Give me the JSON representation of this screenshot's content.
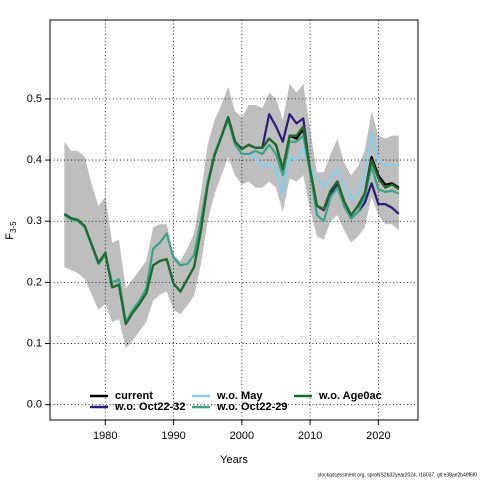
{
  "chart_data": {
    "type": "line",
    "xlabel": "Years",
    "ylabel": "F",
    "ylabel_subscript": "3-5",
    "footer": "stockassessment.org, spraNS2b32year2024, r18037, git:e38ae2b49f6f0",
    "x": [
      1974,
      1975,
      1976,
      1977,
      1978,
      1979,
      1980,
      1981,
      1982,
      1983,
      1984,
      1985,
      1986,
      1987,
      1988,
      1989,
      1990,
      1991,
      1992,
      1993,
      1994,
      1995,
      1996,
      1997,
      1998,
      1999,
      2000,
      2001,
      2002,
      2003,
      2004,
      2005,
      2006,
      2007,
      2008,
      2009,
      2010,
      2011,
      2012,
      2013,
      2014,
      2015,
      2016,
      2017,
      2018,
      2019,
      2020,
      2021,
      2022,
      2023
    ],
    "xlim": [
      1971.9,
      2025.8
    ],
    "xticks": [
      1980,
      1990,
      2000,
      2010,
      2020
    ],
    "ylim": [
      -0.025,
      0.629
    ],
    "yticks": [
      {
        "value": 0,
        "label": "0.0"
      },
      0.1,
      0.2,
      0.3,
      0.4,
      0.5
    ],
    "grid": true,
    "band": {
      "color": "#bebebe",
      "upper": [
        0.43,
        0.415,
        0.415,
        0.405,
        0.36,
        0.325,
        0.34,
        0.265,
        0.27,
        0.19,
        0.205,
        0.22,
        0.235,
        0.29,
        0.295,
        0.295,
        0.245,
        0.235,
        0.255,
        0.28,
        0.345,
        0.425,
        0.465,
        0.49,
        0.52,
        0.48,
        0.47,
        0.49,
        0.49,
        0.485,
        0.51,
        0.5,
        0.465,
        0.525,
        0.51,
        0.525,
        0.45,
        0.38,
        0.38,
        0.41,
        0.435,
        0.395,
        0.375,
        0.39,
        0.415,
        0.48,
        0.44,
        0.435,
        0.44,
        0.44
      ],
      "lower": [
        0.225,
        0.22,
        0.215,
        0.205,
        0.18,
        0.155,
        0.165,
        0.135,
        0.14,
        0.092,
        0.105,
        0.12,
        0.135,
        0.17,
        0.18,
        0.185,
        0.155,
        0.148,
        0.162,
        0.178,
        0.23,
        0.3,
        0.345,
        0.375,
        0.405,
        0.375,
        0.36,
        0.365,
        0.355,
        0.355,
        0.365,
        0.355,
        0.315,
        0.37,
        0.365,
        0.375,
        0.32,
        0.275,
        0.27,
        0.3,
        0.31,
        0.285,
        0.265,
        0.275,
        0.29,
        0.34,
        0.31,
        0.295,
        0.295,
        0.285
      ]
    },
    "series": [
      {
        "name": "current",
        "color": "#000000",
        "values": [
          0.312,
          0.305,
          0.302,
          0.292,
          0.262,
          0.232,
          0.248,
          0.192,
          0.196,
          0.132,
          0.15,
          0.165,
          0.182,
          0.228,
          0.235,
          0.238,
          0.198,
          0.185,
          0.205,
          0.225,
          0.285,
          0.36,
          0.408,
          0.438,
          0.47,
          0.43,
          0.418,
          0.425,
          0.42,
          0.42,
          0.435,
          0.425,
          0.385,
          0.44,
          0.435,
          0.45,
          0.385,
          0.325,
          0.32,
          0.35,
          0.365,
          0.332,
          0.31,
          0.325,
          0.345,
          0.405,
          0.375,
          0.36,
          0.362,
          0.355
        ]
      },
      {
        "name": "w.o. Oct22-32",
        "color": "#2b1a7a",
        "values": [
          0.312,
          0.305,
          0.302,
          0.292,
          0.262,
          0.232,
          0.248,
          0.192,
          0.196,
          0.132,
          0.15,
          0.165,
          0.182,
          0.228,
          0.235,
          0.238,
          0.198,
          0.185,
          0.205,
          0.225,
          0.285,
          0.36,
          0.408,
          0.438,
          0.47,
          0.43,
          0.418,
          0.425,
          0.42,
          0.42,
          0.475,
          0.455,
          0.43,
          0.475,
          0.46,
          0.468,
          0.38,
          0.325,
          0.318,
          0.345,
          0.36,
          0.325,
          0.305,
          0.315,
          0.33,
          0.362,
          0.328,
          0.328,
          0.322,
          0.312
        ]
      },
      {
        "name": "w.o. May",
        "color": "#87ceeb",
        "values": [
          0.312,
          0.305,
          0.302,
          0.292,
          0.262,
          0.232,
          0.248,
          0.192,
          0.196,
          0.132,
          0.15,
          0.165,
          0.182,
          0.228,
          0.235,
          0.238,
          0.198,
          0.185,
          0.205,
          0.225,
          0.285,
          0.36,
          0.408,
          0.438,
          0.465,
          0.425,
          0.41,
          0.41,
          0.405,
          0.39,
          0.395,
          0.385,
          0.345,
          0.405,
          0.4,
          0.42,
          0.385,
          0.37,
          0.355,
          0.37,
          0.385,
          0.36,
          0.335,
          0.345,
          0.375,
          0.445,
          0.4,
          0.392,
          0.392,
          0.392
        ]
      },
      {
        "name": "w.o. Oct22-29",
        "color": "#3aa38a",
        "values": [
          0.31,
          0.303,
          0.3,
          0.29,
          0.26,
          0.23,
          0.245,
          0.2,
          0.205,
          0.135,
          0.155,
          0.17,
          0.19,
          0.255,
          0.265,
          0.28,
          0.24,
          0.228,
          0.23,
          0.245,
          0.3,
          0.365,
          0.41,
          0.44,
          0.465,
          0.425,
          0.41,
          0.41,
          0.415,
          0.41,
          0.425,
          0.41,
          0.375,
          0.43,
          0.43,
          0.44,
          0.38,
          0.31,
          0.3,
          0.34,
          0.355,
          0.325,
          0.305,
          0.315,
          0.34,
          0.39,
          0.352,
          0.348,
          0.35,
          0.345
        ]
      },
      {
        "name": "w.o. Age0ac",
        "color": "#1e6b2a",
        "values": [
          0.312,
          0.305,
          0.302,
          0.292,
          0.262,
          0.232,
          0.248,
          0.192,
          0.196,
          0.132,
          0.15,
          0.165,
          0.182,
          0.228,
          0.235,
          0.238,
          0.198,
          0.185,
          0.205,
          0.225,
          0.285,
          0.36,
          0.408,
          0.438,
          0.47,
          0.43,
          0.418,
          0.425,
          0.42,
          0.42,
          0.435,
          0.425,
          0.385,
          0.44,
          0.44,
          0.455,
          0.385,
          0.325,
          0.32,
          0.35,
          0.365,
          0.332,
          0.31,
          0.325,
          0.345,
          0.4,
          0.37,
          0.355,
          0.36,
          0.352
        ]
      }
    ]
  }
}
